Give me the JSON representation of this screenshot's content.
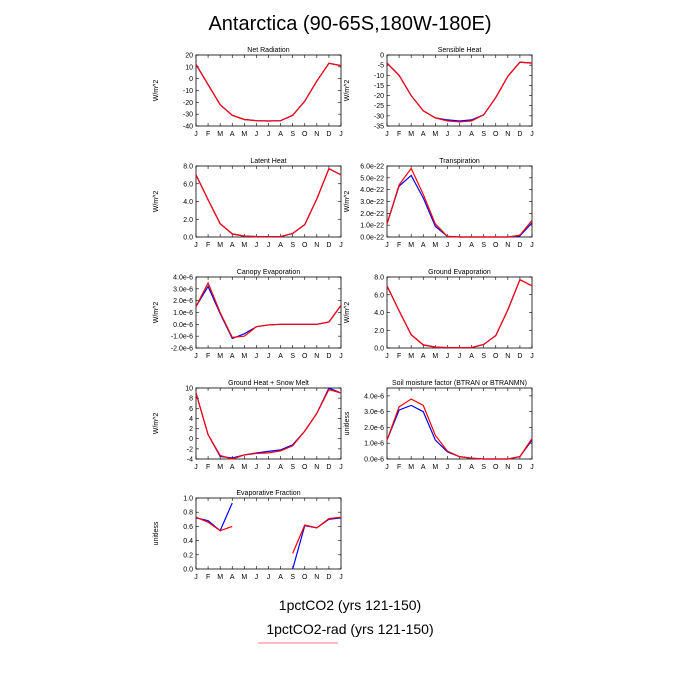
{
  "figure": {
    "title": "Antarctica (90-65S,180W-180E)",
    "legend": [
      {
        "label": "1pctCO2 (yrs 121-150)",
        "color": "#0000ff"
      },
      {
        "label": "1pctCO2-rad (yrs 121-150)",
        "color": "#ff0000"
      }
    ]
  },
  "chart_data": [
    {
      "type": "line",
      "title": "Net Radiation",
      "ylabel": "W/m^2",
      "categories": [
        "J",
        "F",
        "M",
        "A",
        "M",
        "J",
        "J",
        "A",
        "S",
        "O",
        "N",
        "D",
        "J"
      ],
      "ylim": [
        -40,
        20
      ],
      "yticks": [
        20,
        10,
        0,
        -10,
        -20,
        -30,
        -40
      ],
      "ytick_labels": [
        "20",
        "10",
        "0",
        "-10",
        "-20",
        "-30",
        "-40"
      ],
      "series": [
        {
          "color": "#0000ff",
          "values": [
            12,
            -5,
            -22,
            -31,
            -34.5,
            -35.5,
            -35.8,
            -35.5,
            -31,
            -19,
            -2,
            13,
            11
          ]
        },
        {
          "color": "#ff0000",
          "values": [
            12,
            -5,
            -22,
            -31,
            -34.5,
            -35.5,
            -35.8,
            -35.5,
            -31,
            -19,
            -2,
            13,
            11
          ]
        }
      ]
    },
    {
      "type": "line",
      "title": "Sensible Heat",
      "ylabel": "W/m^2",
      "categories": [
        "J",
        "F",
        "M",
        "A",
        "M",
        "J",
        "J",
        "A",
        "S",
        "O",
        "N",
        "D",
        "J"
      ],
      "ylim": [
        -35,
        0
      ],
      "yticks": [
        0,
        -5,
        -10,
        -15,
        -20,
        -25,
        -30,
        -35
      ],
      "ytick_labels": [
        "0",
        "-5",
        "-10",
        "-15",
        "-20",
        "-25",
        "-30",
        "-35"
      ],
      "series": [
        {
          "color": "#0000ff",
          "values": [
            -4,
            -10,
            -20,
            -27.5,
            -31,
            -32,
            -32.5,
            -32,
            -29.5,
            -21,
            -10.5,
            -3.5,
            -4
          ]
        },
        {
          "color": "#ff0000",
          "values": [
            -4,
            -10,
            -20,
            -27.5,
            -31,
            -32.5,
            -33,
            -32.5,
            -29.5,
            -21,
            -10.5,
            -3.5,
            -4
          ]
        }
      ]
    },
    {
      "type": "line",
      "title": "Latent Heat",
      "ylabel": "W/m^2",
      "categories": [
        "J",
        "F",
        "M",
        "A",
        "M",
        "J",
        "J",
        "A",
        "S",
        "O",
        "N",
        "D",
        "J"
      ],
      "ylim": [
        0,
        8
      ],
      "yticks": [
        0,
        2,
        4,
        6,
        8
      ],
      "ytick_labels": [
        "0.0",
        "2.0",
        "4.0",
        "6.0",
        "8.0"
      ],
      "series": [
        {
          "color": "#0000ff",
          "values": [
            7,
            4.2,
            1.5,
            0.35,
            0.1,
            0.05,
            0.05,
            0.05,
            0.4,
            1.4,
            4.3,
            7.7,
            7
          ]
        },
        {
          "color": "#ff0000",
          "values": [
            7,
            4.2,
            1.5,
            0.35,
            0.1,
            0.05,
            0.05,
            0.05,
            0.4,
            1.4,
            4.3,
            7.7,
            7
          ]
        }
      ]
    },
    {
      "type": "line",
      "title": "Transpiration",
      "ylabel": "W/m^2",
      "categories": [
        "J",
        "F",
        "M",
        "A",
        "M",
        "J",
        "J",
        "A",
        "S",
        "O",
        "N",
        "D",
        "J"
      ],
      "ylim": [
        0,
        6e-22
      ],
      "yticks": [
        0,
        1e-22,
        2e-22,
        3e-22,
        4e-22,
        5e-22,
        6e-22
      ],
      "ytick_labels": [
        "0.0e-22",
        "1.0e-22",
        "2.0e-22",
        "3.0e-22",
        "4.0e-22",
        "5.0e-22",
        "6.0e-22"
      ],
      "series": [
        {
          "color": "#0000ff",
          "values": [
            1.1e-22,
            4.3e-22,
            5.2e-22,
            3.3e-22,
            9e-23,
            5e-24,
            0,
            0,
            0,
            0,
            0,
            1e-23,
            1.2e-22
          ]
        },
        {
          "color": "#ff0000",
          "values": [
            1.1e-22,
            4.4e-22,
            5.8e-22,
            3.6e-22,
            1.1e-22,
            5e-24,
            0,
            0,
            0,
            0,
            0,
            1.5e-23,
            1.4e-22
          ]
        }
      ]
    },
    {
      "type": "line",
      "title": "Canopy Evaporation",
      "ylabel": "W/m^2",
      "categories": [
        "J",
        "F",
        "M",
        "A",
        "M",
        "J",
        "J",
        "A",
        "S",
        "O",
        "N",
        "D",
        "J"
      ],
      "ylim": [
        -2e-06,
        4e-06
      ],
      "yticks": [
        4e-06,
        3e-06,
        2e-06,
        1e-06,
        0,
        -1e-06,
        -2e-06
      ],
      "ytick_labels": [
        "4.0e-6",
        "3.0e-6",
        "2.0e-6",
        "1.0e-6",
        "0.0e-6",
        "-1.0e-6",
        "-2.0e-6"
      ],
      "series": [
        {
          "color": "#0000ff",
          "values": [
            1.5e-06,
            3.2e-06,
            9e-07,
            -1.2e-06,
            -8e-07,
            -2e-07,
            -5e-08,
            0,
            0,
            0,
            0,
            2e-07,
            1.6e-06
          ]
        },
        {
          "color": "#ff0000",
          "values": [
            1.5e-06,
            3.5e-06,
            1e-06,
            -1.1e-06,
            -1e-06,
            -2e-07,
            -5e-08,
            0,
            0,
            0,
            0,
            2e-07,
            1.6e-06
          ]
        }
      ]
    },
    {
      "type": "line",
      "title": "Ground Evaporation",
      "ylabel": "W/m^2",
      "categories": [
        "J",
        "F",
        "M",
        "A",
        "M",
        "J",
        "J",
        "A",
        "S",
        "O",
        "N",
        "D",
        "J"
      ],
      "ylim": [
        0,
        8
      ],
      "yticks": [
        0,
        2,
        4,
        6,
        8
      ],
      "ytick_labels": [
        "0.0",
        "2.0",
        "4.0",
        "6.0",
        "8.0"
      ],
      "series": [
        {
          "color": "#0000ff",
          "values": [
            7,
            4.2,
            1.5,
            0.35,
            0.1,
            0.05,
            0.05,
            0.05,
            0.4,
            1.4,
            4.3,
            7.7,
            7
          ]
        },
        {
          "color": "#ff0000",
          "values": [
            7,
            4.2,
            1.5,
            0.35,
            0.1,
            0.05,
            0.05,
            0.05,
            0.4,
            1.4,
            4.3,
            7.7,
            7
          ]
        }
      ]
    },
    {
      "type": "line",
      "title": "Ground Heat + Snow Melt",
      "ylabel": "W/m^2",
      "categories": [
        "J",
        "F",
        "M",
        "A",
        "M",
        "J",
        "J",
        "A",
        "S",
        "O",
        "N",
        "D",
        "J"
      ],
      "ylim": [
        -4,
        10
      ],
      "yticks": [
        10,
        8,
        6,
        4,
        2,
        0,
        -2,
        -4
      ],
      "ytick_labels": [
        "10",
        "8",
        "6",
        "4",
        "2",
        "0",
        "-2",
        "-4"
      ],
      "series": [
        {
          "color": "#0000ff",
          "values": [
            9,
            0.8,
            -3.5,
            -3.8,
            -3.2,
            -2.8,
            -2.5,
            -2.2,
            -1.2,
            1.5,
            5,
            10,
            9
          ]
        },
        {
          "color": "#ff0000",
          "values": [
            9,
            0.8,
            -3.3,
            -4,
            -3.2,
            -2.9,
            -2.8,
            -2.4,
            -1.4,
            1.5,
            5,
            9.7,
            9
          ]
        }
      ]
    },
    {
      "type": "line",
      "title": "Soil moisture factor (BTRAN or BTRANMN)",
      "ylabel": "unitless",
      "categories": [
        "J",
        "F",
        "M",
        "A",
        "M",
        "J",
        "J",
        "A",
        "S",
        "O",
        "N",
        "D",
        "J"
      ],
      "ylim": [
        0,
        4.5e-06
      ],
      "yticks": [
        0,
        1e-06,
        2e-06,
        3e-06,
        4e-06
      ],
      "ytick_labels": [
        "0.0e-6",
        "1.0e-6",
        "2.0e-6",
        "3.0e-6",
        "4.0e-6"
      ],
      "series": [
        {
          "color": "#0000ff",
          "values": [
            1.2e-06,
            3.1e-06,
            3.4e-06,
            3e-06,
            1.2e-06,
            4.5e-07,
            1.5e-07,
            5e-08,
            0,
            0,
            0,
            1.5e-07,
            1.2e-06
          ]
        },
        {
          "color": "#ff0000",
          "values": [
            1.2e-06,
            3.3e-06,
            3.8e-06,
            3.4e-06,
            1.5e-06,
            5e-07,
            1.5e-07,
            5e-08,
            0,
            0,
            0,
            1.5e-07,
            1.3e-06
          ]
        }
      ]
    },
    {
      "type": "line",
      "title": "Evaporative Fraction",
      "ylabel": "unitless",
      "categories": [
        "J",
        "F",
        "M",
        "A",
        "M",
        "J",
        "J",
        "A",
        "S",
        "O",
        "N",
        "D",
        "J"
      ],
      "ylim": [
        0,
        1
      ],
      "yticks": [
        0,
        0.2,
        0.4,
        0.6,
        0.8,
        1.0
      ],
      "ytick_labels": [
        "0.0",
        "0.2",
        "0.4",
        "0.6",
        "0.8",
        "1.0"
      ],
      "series": [
        {
          "color": "#0000ff",
          "values": [
            0.72,
            0.68,
            0.54,
            0.93,
            null,
            null,
            null,
            null,
            0.0,
            0.61,
            0.58,
            0.7,
            0.72
          ]
        },
        {
          "color": "#ff0000",
          "values": [
            0.73,
            0.66,
            0.54,
            0.6,
            null,
            null,
            null,
            null,
            0.22,
            0.62,
            0.58,
            0.71,
            0.73
          ]
        }
      ]
    }
  ]
}
